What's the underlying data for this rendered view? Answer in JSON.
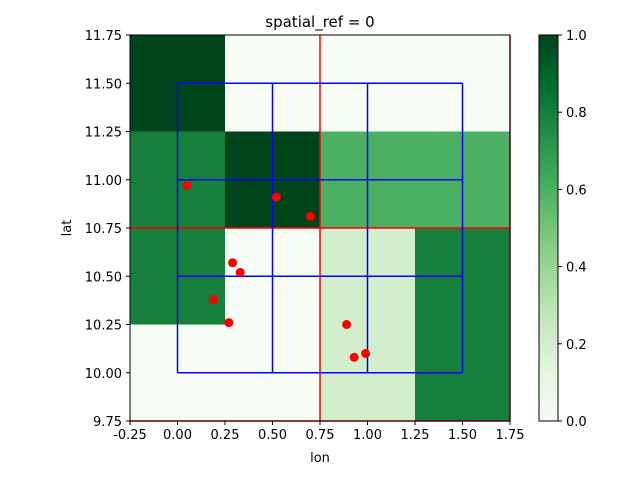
{
  "chart_data": {
    "type": "heatmap",
    "title": "spatial_ref = 0",
    "xlabel": "lon",
    "ylabel": "lat",
    "xlim": [
      -0.25,
      1.75
    ],
    "ylim": [
      9.75,
      11.75
    ],
    "x_ticks": [
      "-0.25",
      "0.00",
      "0.25",
      "0.50",
      "0.75",
      "1.00",
      "1.25",
      "1.50",
      "1.75"
    ],
    "y_ticks": [
      "9.75",
      "10.00",
      "10.25",
      "10.50",
      "10.75",
      "11.00",
      "11.25",
      "11.50",
      "11.75"
    ],
    "x_tick_values": [
      -0.25,
      0,
      0.25,
      0.5,
      0.75,
      1.0,
      1.25,
      1.5,
      1.75
    ],
    "y_tick_values": [
      9.75,
      10.0,
      10.25,
      10.5,
      10.75,
      11.0,
      11.25,
      11.5,
      11.75
    ],
    "colormap": "Greens",
    "colorbar": {
      "ticks": [
        "0.0",
        "0.2",
        "0.4",
        "0.6",
        "0.8",
        "1.0"
      ],
      "tick_values": [
        0,
        0.2,
        0.4,
        0.6,
        0.8,
        1.0
      ],
      "range": [
        0,
        1
      ]
    },
    "heatmap": {
      "x_edges": [
        -0.25,
        0.25,
        0.75,
        1.25,
        1.75
      ],
      "y_edges": [
        9.75,
        10.25,
        10.75,
        11.25,
        11.75
      ],
      "values": [
        [
          0.0,
          0.0,
          0.2,
          0.8
        ],
        [
          0.8,
          0.0,
          0.2,
          0.8
        ],
        [
          0.8,
          1.0,
          0.6,
          0.6
        ],
        [
          1.0,
          0.0,
          0.0,
          0.0
        ]
      ]
    },
    "red_lines": {
      "vertical": [
        0.75,
        1.75
      ],
      "horizontal": [
        9.75,
        10.75
      ],
      "color": "#ff0000"
    },
    "blue_grid": {
      "x": [
        0.0,
        0.5,
        1.0,
        1.5
      ],
      "y": [
        10.0,
        10.5,
        11.0,
        11.5
      ],
      "color": "#0000ff"
    },
    "points": {
      "color": "#ff0000",
      "x": [
        0.05,
        0.52,
        0.7,
        0.29,
        0.33,
        0.19,
        0.27,
        0.89,
        0.93,
        0.99
      ],
      "y": [
        10.97,
        10.91,
        10.81,
        10.57,
        10.52,
        10.38,
        10.26,
        10.25,
        10.08,
        10.1
      ]
    }
  }
}
